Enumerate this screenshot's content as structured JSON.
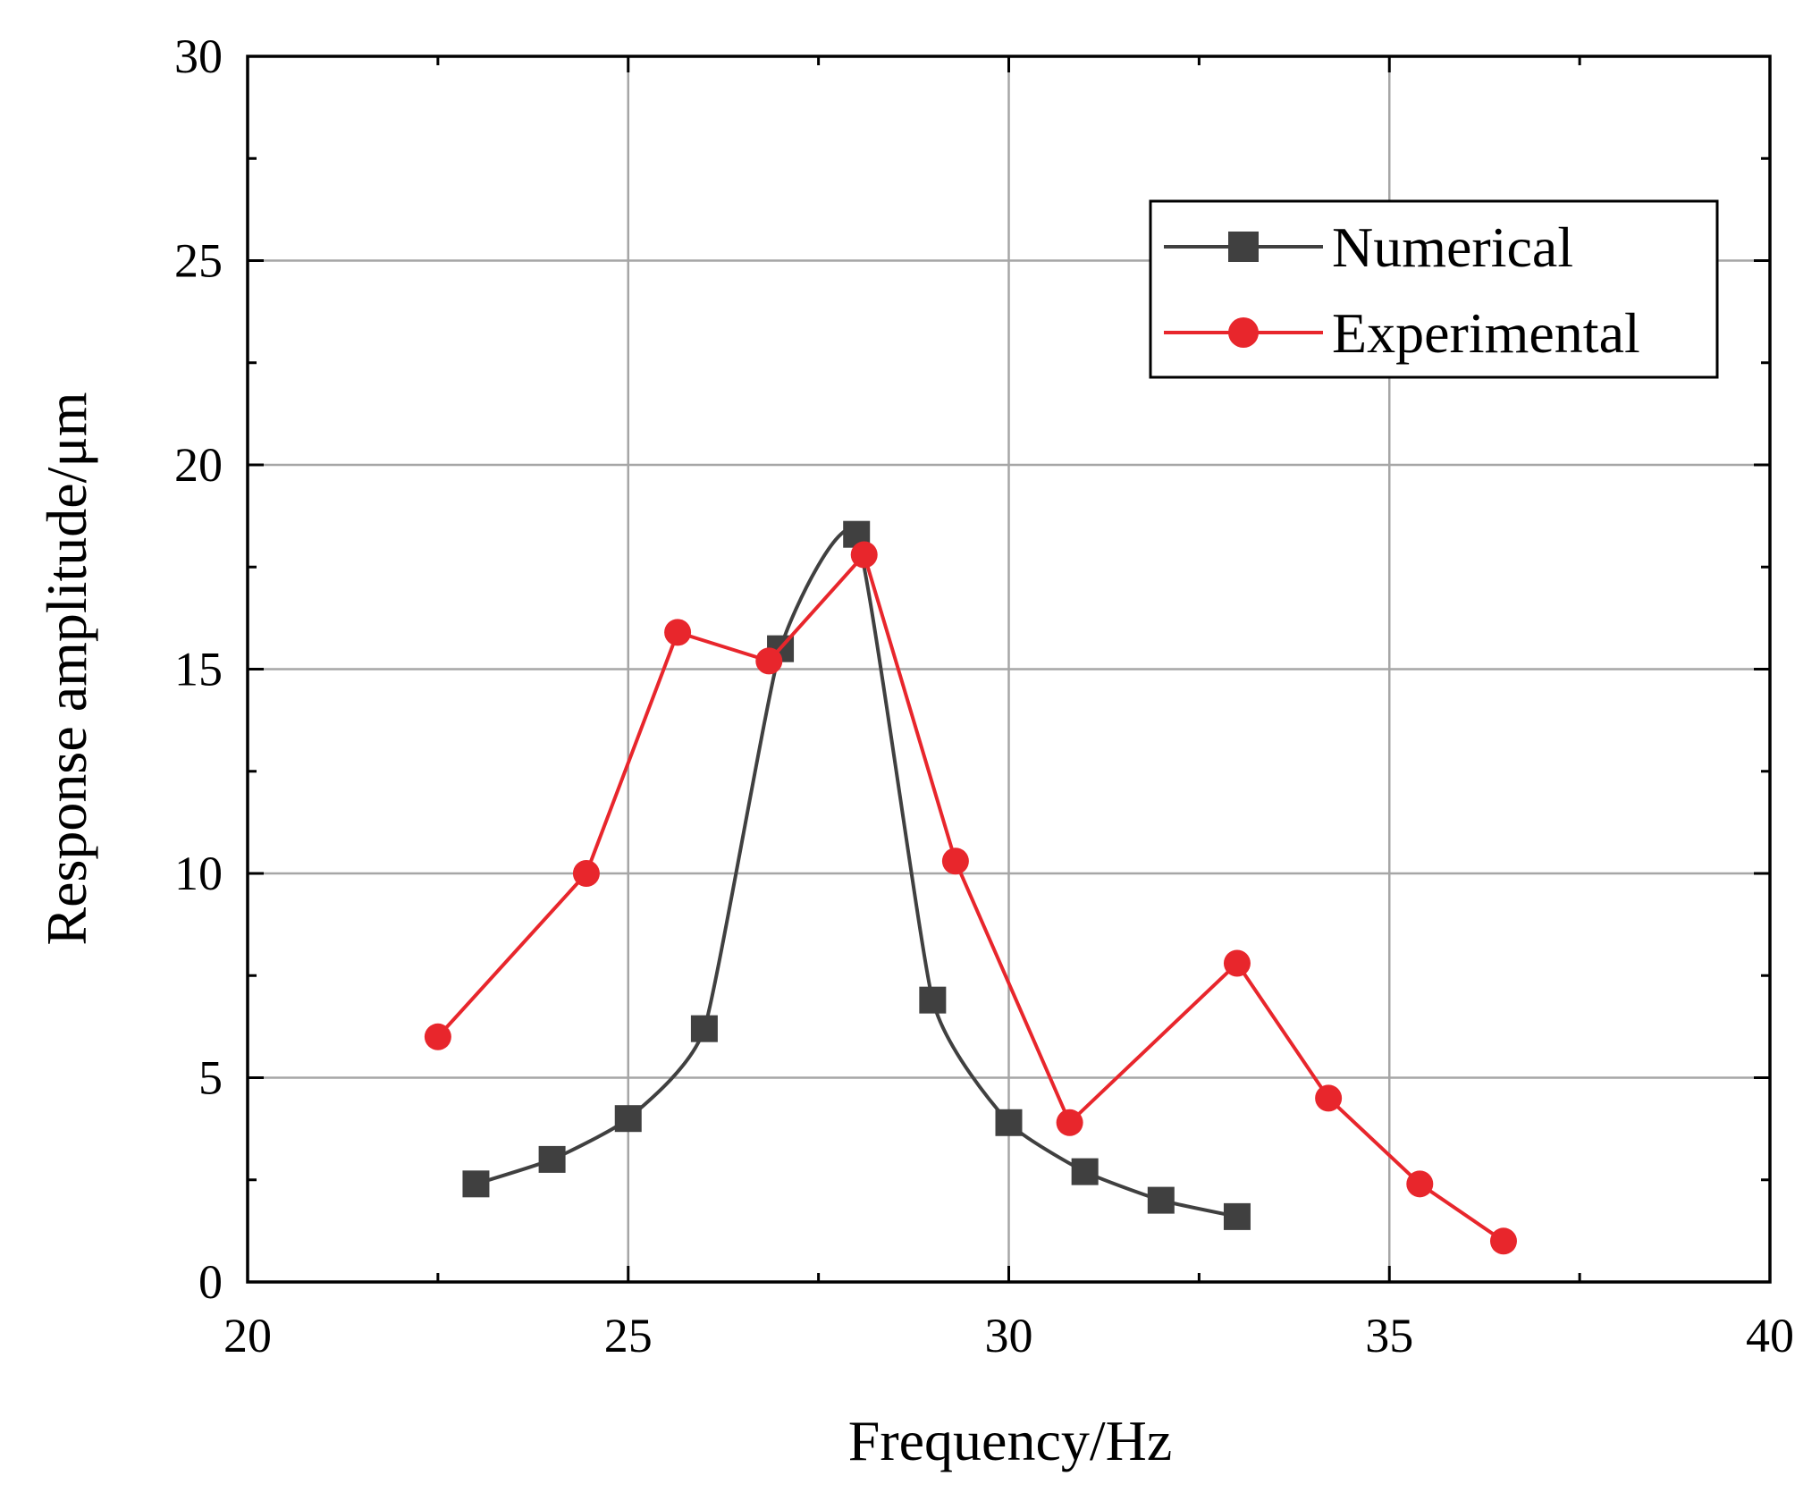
{
  "chart_data": {
    "type": "line",
    "title": "",
    "xlabel": "Frequency/Hz",
    "ylabel": "Response amplitude/μm",
    "xlim": [
      20,
      40
    ],
    "ylim": [
      0,
      30
    ],
    "x_ticks": [
      20,
      25,
      30,
      35,
      40
    ],
    "y_ticks": [
      0,
      5,
      10,
      15,
      20,
      25,
      30
    ],
    "x_tick_labels": [
      "20",
      "25",
      "30",
      "35",
      "40"
    ],
    "y_tick_labels": [
      "0",
      "5",
      "10",
      "15",
      "20",
      "25",
      "30"
    ],
    "grid": true,
    "legend_position": "top-right",
    "series": [
      {
        "name": "Numerical",
        "color": "#404040",
        "marker": "square",
        "smooth": true,
        "x": [
          23,
          24,
          25,
          26,
          27,
          28,
          29,
          30,
          31,
          32,
          33
        ],
        "y": [
          2.4,
          3.0,
          4.0,
          6.2,
          15.5,
          18.3,
          6.9,
          3.9,
          2.7,
          2.0,
          1.6
        ]
      },
      {
        "name": "Experimental",
        "color": "#e8262c",
        "marker": "circle",
        "smooth": false,
        "x": [
          22.5,
          24.45,
          25.65,
          26.85,
          28.1,
          29.3,
          30.8,
          33.0,
          34.2,
          35.4,
          36.5
        ],
        "y": [
          6.0,
          10.0,
          15.9,
          15.2,
          17.8,
          10.3,
          3.9,
          7.8,
          4.5,
          2.4,
          1.0
        ]
      }
    ]
  }
}
